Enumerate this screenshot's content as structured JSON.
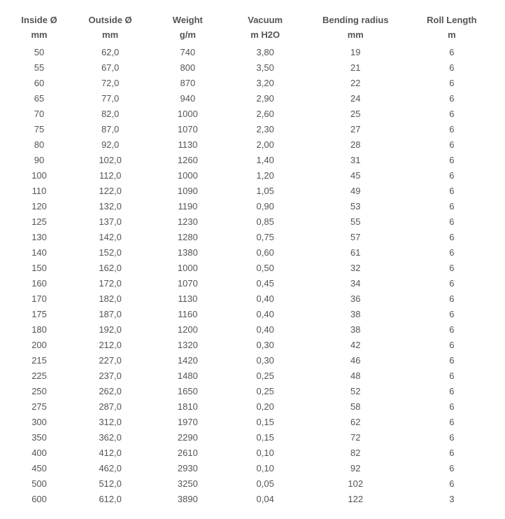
{
  "table": {
    "columns": [
      {
        "label": "Inside Ø",
        "unit": "mm"
      },
      {
        "label": "Outside Ø",
        "unit": "mm"
      },
      {
        "label": "Weight",
        "unit": "g/m"
      },
      {
        "label": "Vacuum",
        "unit": "m H2O"
      },
      {
        "label": "Bending radius",
        "unit": "mm"
      },
      {
        "label": "Roll Length",
        "unit": "m"
      }
    ],
    "rows": [
      [
        "50",
        "62,0",
        "740",
        "3,80",
        "19",
        "6"
      ],
      [
        "55",
        "67,0",
        "800",
        "3,50",
        "21",
        "6"
      ],
      [
        "60",
        "72,0",
        "870",
        "3,20",
        "22",
        "6"
      ],
      [
        "65",
        "77,0",
        "940",
        "2,90",
        "24",
        "6"
      ],
      [
        "70",
        "82,0",
        "1000",
        "2,60",
        "25",
        "6"
      ],
      [
        "75",
        "87,0",
        "1070",
        "2,30",
        "27",
        "6"
      ],
      [
        "80",
        "92,0",
        "1130",
        "2,00",
        "28",
        "6"
      ],
      [
        "90",
        "102,0",
        "1260",
        "1,40",
        "31",
        "6"
      ],
      [
        "100",
        "112,0",
        "1000",
        "1,20",
        "45",
        "6"
      ],
      [
        "110",
        "122,0",
        "1090",
        "1,05",
        "49",
        "6"
      ],
      [
        "120",
        "132,0",
        "1190",
        "0,90",
        "53",
        "6"
      ],
      [
        "125",
        "137,0",
        "1230",
        "0,85",
        "55",
        "6"
      ],
      [
        "130",
        "142,0",
        "1280",
        "0,75",
        "57",
        "6"
      ],
      [
        "140",
        "152,0",
        "1380",
        "0,60",
        "61",
        "6"
      ],
      [
        "150",
        "162,0",
        "1000",
        "0,50",
        "32",
        "6"
      ],
      [
        "160",
        "172,0",
        "1070",
        "0,45",
        "34",
        "6"
      ],
      [
        "170",
        "182,0",
        "1130",
        "0,40",
        "36",
        "6"
      ],
      [
        "175",
        "187,0",
        "1160",
        "0,40",
        "38",
        "6"
      ],
      [
        "180",
        "192,0",
        "1200",
        "0,40",
        "38",
        "6"
      ],
      [
        "200",
        "212,0",
        "1320",
        "0,30",
        "42",
        "6"
      ],
      [
        "215",
        "227,0",
        "1420",
        "0,30",
        "46",
        "6"
      ],
      [
        "225",
        "237,0",
        "1480",
        "0,25",
        "48",
        "6"
      ],
      [
        "250",
        "262,0",
        "1650",
        "0,25",
        "52",
        "6"
      ],
      [
        "275",
        "287,0",
        "1810",
        "0,20",
        "58",
        "6"
      ],
      [
        "300",
        "312,0",
        "1970",
        "0,15",
        "62",
        "6"
      ],
      [
        "350",
        "362,0",
        "2290",
        "0,15",
        "72",
        "6"
      ],
      [
        "400",
        "412,0",
        "2610",
        "0,10",
        "82",
        "6"
      ],
      [
        "450",
        "462,0",
        "2930",
        "0,10",
        "92",
        "6"
      ],
      [
        "500",
        "512,0",
        "3250",
        "0,05",
        "102",
        "6"
      ],
      [
        "600",
        "612,0",
        "3890",
        "0,04",
        "122",
        "3"
      ]
    ]
  }
}
